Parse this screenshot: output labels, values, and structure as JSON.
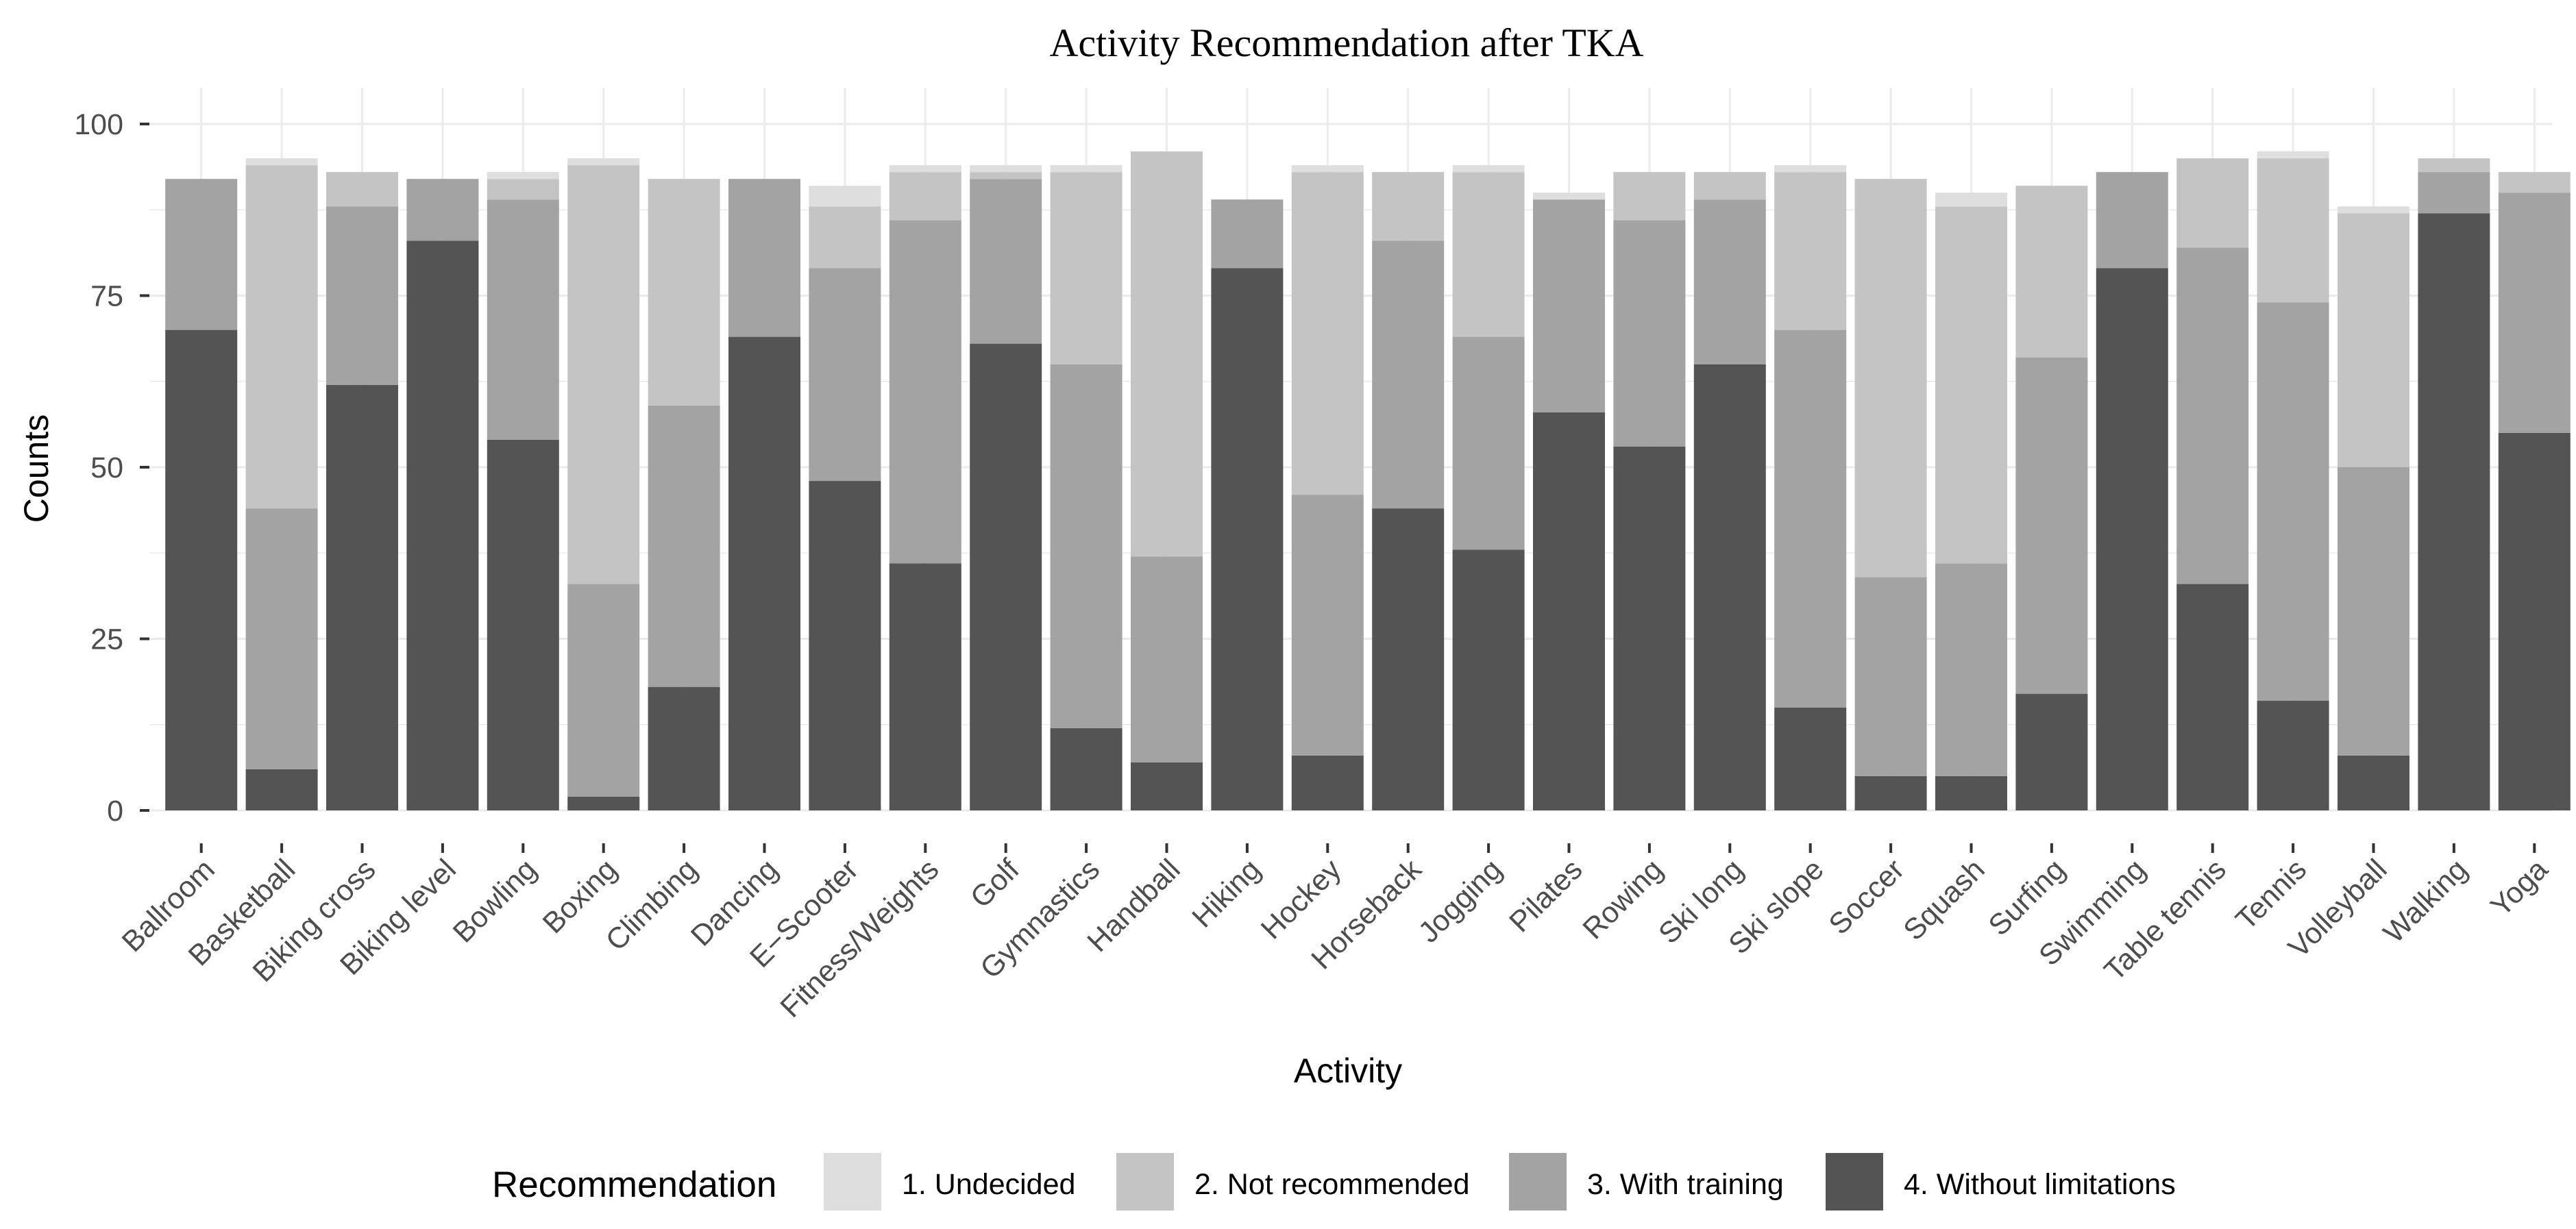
{
  "chart_data": {
    "type": "bar",
    "stacked": true,
    "title": "Activity Recommendation after TKA",
    "xlabel": "Activity",
    "ylabel": "Counts",
    "ylim": [
      0,
      100
    ],
    "yticks": [
      0,
      25,
      50,
      75,
      100
    ],
    "legend": {
      "title": "Recommendation",
      "position": "bottom"
    },
    "categories": [
      "Ballroom",
      "Basketball",
      "Biking cross",
      "Biking level",
      "Bowling",
      "Boxing",
      "Climbing",
      "Dancing",
      "E−Scooter",
      "Fitness/Weights",
      "Golf",
      "Gymnastics",
      "Handball",
      "Hiking",
      "Hockey",
      "Horseback",
      "Jogging",
      "Pilates",
      "Rowing",
      "Ski long",
      "Ski slope",
      "Soccer",
      "Squash",
      "Surfing",
      "Swimming",
      "Table tennis",
      "Tennis",
      "Volleyball",
      "Walking",
      "Yoga"
    ],
    "series": [
      {
        "name": "4. Without limitations",
        "color": "#545454",
        "values": [
          70,
          6,
          62,
          83,
          54,
          2,
          18,
          69,
          48,
          36,
          68,
          12,
          7,
          79,
          8,
          44,
          38,
          58,
          53,
          65,
          15,
          5,
          5,
          17,
          79,
          33,
          16,
          8,
          87,
          55
        ]
      },
      {
        "name": "3. With training",
        "color": "#a3a3a3",
        "values": [
          22,
          38,
          26,
          9,
          35,
          31,
          41,
          23,
          31,
          50,
          24,
          53,
          30,
          10,
          38,
          39,
          31,
          31,
          33,
          24,
          55,
          29,
          31,
          49,
          14,
          49,
          58,
          42,
          6,
          35
        ]
      },
      {
        "name": "2. Not recommended",
        "color": "#c4c4c4",
        "values": [
          0,
          50,
          5,
          0,
          3,
          61,
          33,
          0,
          9,
          7,
          1,
          28,
          59,
          0,
          47,
          10,
          24,
          0,
          7,
          4,
          23,
          58,
          52,
          25,
          0,
          13,
          21,
          37,
          2,
          3
        ]
      },
      {
        "name": "1. Undecided",
        "color": "#dedede",
        "values": [
          0,
          1,
          0,
          0,
          1,
          1,
          0,
          0,
          3,
          1,
          1,
          1,
          0,
          0,
          1,
          0,
          1,
          1,
          0,
          0,
          1,
          0,
          2,
          0,
          0,
          0,
          1,
          1,
          0,
          0
        ]
      }
    ]
  }
}
